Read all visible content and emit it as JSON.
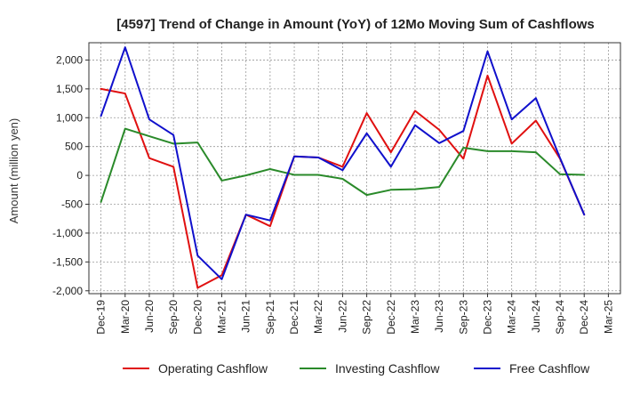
{
  "chart_data": {
    "type": "line",
    "title": "[4597]  Trend of Change in Amount (YoY) of 12Mo Moving Sum of Cashflows",
    "xlabel": "",
    "ylabel": "Amount (million yen)",
    "ylim": [
      -2050,
      2300
    ],
    "yticks": [
      -2000,
      -1500,
      -1000,
      -500,
      0,
      500,
      1000,
      1500,
      2000
    ],
    "ytick_labels": [
      "-2,000",
      "-1,500",
      "-1,000",
      "-500",
      "0",
      "500",
      "1,000",
      "1,500",
      "2,000"
    ],
    "x_tick_labels": [
      "Dec-19",
      "Mar-20",
      "Jun-20",
      "Sep-20",
      "Dec-20",
      "Mar-21",
      "Jun-21",
      "Sep-21",
      "Dec-21",
      "Mar-22",
      "Jun-22",
      "Sep-22",
      "Dec-22",
      "Mar-23",
      "Jun-23",
      "Sep-23",
      "Dec-23",
      "Mar-24",
      "Jun-24",
      "Sep-24",
      "Dec-24",
      "Mar-25"
    ],
    "grid": true,
    "legend_position": "bottom",
    "series": [
      {
        "name": "Operating Cashflow",
        "color": "#e01010",
        "values": [
          1500,
          1420,
          300,
          150,
          -1950,
          -1730,
          -680,
          -880,
          330,
          310,
          150,
          1080,
          400,
          1120,
          790,
          290,
          1730,
          550,
          950,
          290,
          -680,
          null
        ]
      },
      {
        "name": "Investing Cashflow",
        "color": "#2a8a2a",
        "values": [
          -460,
          810,
          680,
          550,
          570,
          -90,
          0,
          110,
          10,
          10,
          -60,
          -340,
          -250,
          -240,
          -200,
          480,
          420,
          420,
          400,
          20,
          10,
          null
        ]
      },
      {
        "name": "Free Cashflow",
        "color": "#1010cc",
        "values": [
          1030,
          2220,
          970,
          700,
          -1390,
          -1800,
          -680,
          -780,
          330,
          310,
          90,
          730,
          150,
          870,
          560,
          770,
          2150,
          970,
          1340,
          300,
          -680,
          null
        ]
      }
    ]
  }
}
